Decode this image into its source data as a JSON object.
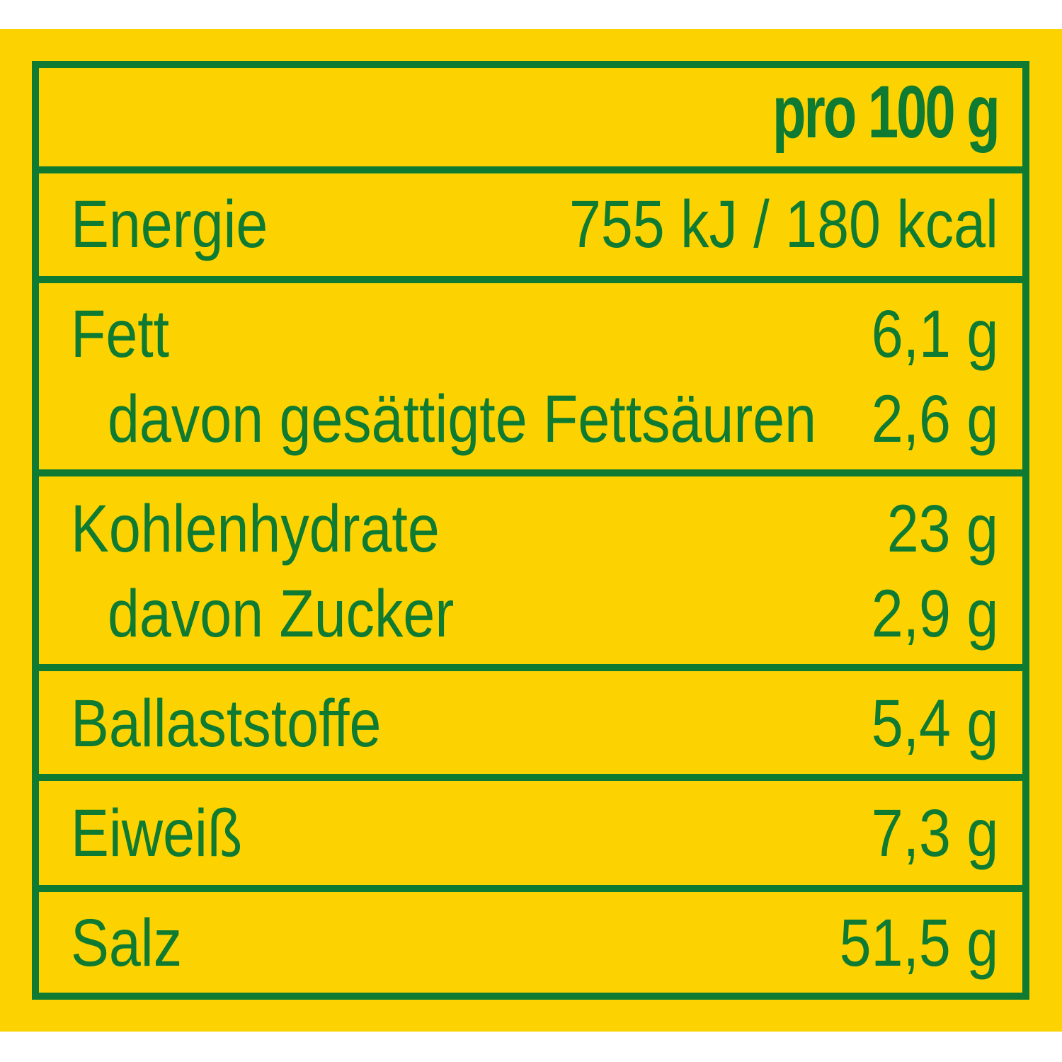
{
  "header": {
    "label": "pro 100 g"
  },
  "rows": [
    {
      "label": "Energie",
      "value": "755 kJ / 180 kcal"
    },
    {
      "label": "Fett",
      "value": "6,1 g"
    },
    {
      "label": "davon gesättigte Fettsäuren",
      "value": "2,6 g"
    },
    {
      "label": "Kohlenhydrate",
      "value": "23 g"
    },
    {
      "label": "davon Zucker",
      "value": "2,9 g"
    },
    {
      "label": "Ballaststoffe",
      "value": "5,4 g"
    },
    {
      "label": "Eiweiß",
      "value": "7,3 g"
    },
    {
      "label": "Salz",
      "value": "51,5 g"
    }
  ],
  "colors": {
    "background": "#FCD300",
    "text_and_lines": "#0E7A32"
  }
}
